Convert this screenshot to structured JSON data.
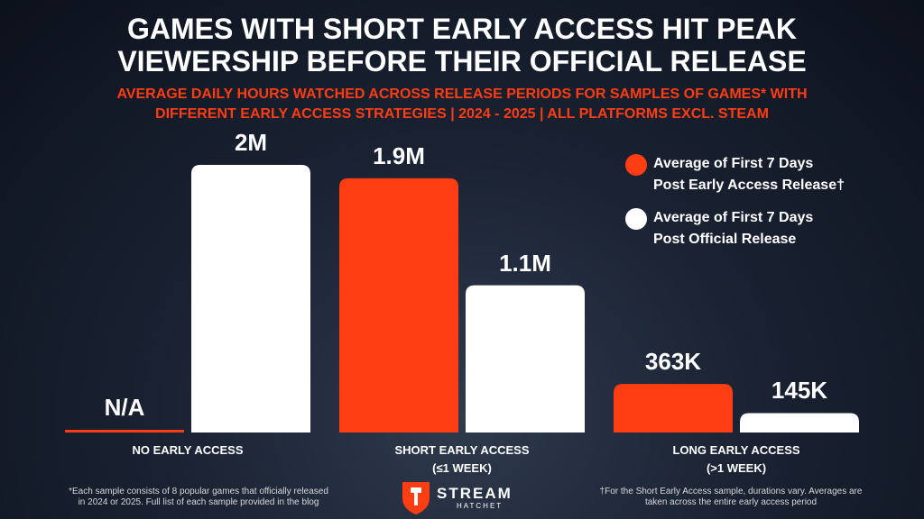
{
  "chart_data": {
    "type": "bar",
    "title": "GAMES WITH SHORT EARLY ACCESS HIT PEAK\nVIEWERSHIP BEFORE THEIR OFFICIAL RELEASE",
    "subtitle": "AVERAGE DAILY HOURS WATCHED ACROSS RELEASE PERIODS FOR SAMPLES OF GAMES* WITH\nDIFFERENT EARLY ACCESS STRATEGIES | 2024 - 2025 | ALL PLATFORMS EXCL. STEAM",
    "categories": [
      "NO EARLY ACCESS",
      "SHORT EARLY ACCESS\n(≤1 WEEK)",
      "LONG EARLY ACCESS\n(>1 WEEK)"
    ],
    "series": [
      {
        "name": "Average of First 7 Days\nPost Early Access Release†",
        "color": "#ff3d12",
        "values": [
          null,
          1900000,
          363000
        ],
        "value_labels": [
          "N/A",
          "1.9M",
          "363K"
        ]
      },
      {
        "name": "Average of First 7 Days\nPost Official Release",
        "color": "#ffffff",
        "values": [
          2000000,
          1100000,
          145000
        ],
        "value_labels": [
          "2M",
          "1.1M",
          "145K"
        ]
      }
    ],
    "footnotes": [
      "*Each sample consists of 8 popular games that officially released\nin 2024 or 2025. Full list of each sample provided in the blog",
      "†For the Short Early Access sample, durations vary. Averages are\ntaken across the entire early access period"
    ],
    "logo": {
      "name": "STREAM",
      "tagline": "HATCHET"
    }
  }
}
